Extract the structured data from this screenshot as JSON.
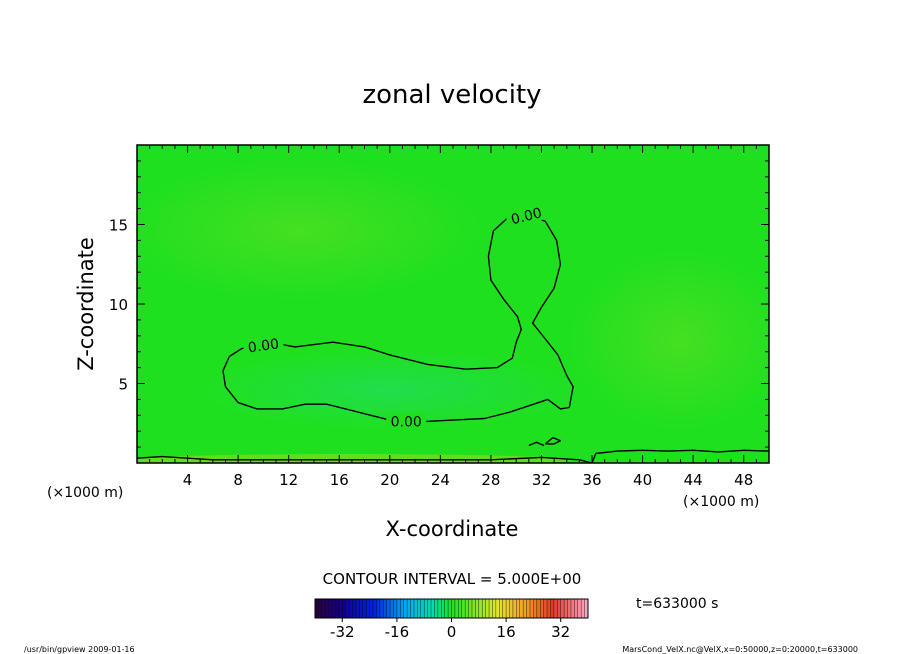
{
  "chart_data": {
    "type": "heatmap",
    "title": "zonal velocity",
    "xlabel": "X-coordinate",
    "ylabel": "Z-coordinate",
    "x_unit": "(×1000 m)",
    "y_unit": "(×1000 m)",
    "xlim": [
      0,
      50
    ],
    "ylim": [
      0,
      20
    ],
    "x_ticks": [
      4,
      8,
      12,
      16,
      20,
      24,
      28,
      32,
      36,
      40,
      44,
      48
    ],
    "y_ticks": [
      5,
      10,
      15
    ],
    "grid": false,
    "contour_interval_text": "CONTOUR INTERVAL = 5.000E+00",
    "contour_label": "0.00",
    "contours": [
      {
        "value": 0.0,
        "points": [
          [
            8.3,
            7.2
          ],
          [
            10.5,
            7.6
          ],
          [
            12.5,
            7.3
          ],
          [
            15.5,
            7.6
          ],
          [
            18,
            7.3
          ],
          [
            20,
            6.8
          ],
          [
            23,
            6.2
          ],
          [
            26,
            5.9
          ],
          [
            28.5,
            6.0
          ],
          [
            29.7,
            6.6
          ],
          [
            30,
            7.6
          ],
          [
            30.4,
            8.4
          ],
          [
            30.1,
            9.2
          ],
          [
            29,
            10.3
          ],
          [
            28,
            11.5
          ],
          [
            27.8,
            13
          ],
          [
            28.2,
            14.6
          ],
          [
            29.3,
            15.4
          ],
          [
            30.8,
            15.7
          ],
          [
            32.3,
            15.2
          ],
          [
            33.2,
            14.0
          ],
          [
            33.5,
            12.5
          ],
          [
            33.0,
            11.0
          ],
          [
            32.0,
            9.8
          ],
          [
            31.3,
            8.8
          ],
          [
            32.3,
            7.8
          ],
          [
            33.3,
            6.8
          ],
          [
            34.0,
            5.5
          ],
          [
            34.5,
            4.8
          ],
          [
            34.2,
            3.5
          ],
          [
            33.5,
            3.4
          ],
          [
            32.5,
            4.0
          ],
          [
            31.0,
            3.6
          ],
          [
            29.5,
            3.2
          ],
          [
            27.5,
            2.8
          ],
          [
            25,
            2.7
          ],
          [
            22.5,
            2.6
          ],
          [
            20.5,
            2.6
          ],
          [
            18.5,
            3.0
          ],
          [
            16.5,
            3.4
          ],
          [
            15,
            3.7
          ],
          [
            13.3,
            3.7
          ],
          [
            11.5,
            3.4
          ],
          [
            9.5,
            3.4
          ],
          [
            8,
            3.8
          ],
          [
            7.0,
            4.8
          ],
          [
            6.8,
            5.8
          ],
          [
            7.3,
            6.7
          ],
          [
            8.3,
            7.2
          ]
        ]
      },
      {
        "value": 0.0,
        "points": [
          [
            31.0,
            1.1
          ],
          [
            31.6,
            1.3
          ],
          [
            32.2,
            1.1
          ]
        ]
      },
      {
        "value": 0.0,
        "points": [
          [
            32.3,
            1.2
          ],
          [
            32.9,
            1.6
          ],
          [
            33.5,
            1.4
          ],
          [
            33.0,
            1.2
          ],
          [
            32.3,
            1.2
          ]
        ]
      },
      {
        "value": 0.0,
        "points": [
          [
            0,
            0.3
          ],
          [
            2,
            0.4
          ],
          [
            4,
            0.3
          ],
          [
            6,
            0.2
          ],
          [
            12,
            0.2
          ],
          [
            20,
            0.2
          ],
          [
            28,
            0.2
          ],
          [
            32,
            0.35
          ],
          [
            35,
            0.2
          ],
          [
            36,
            0.0
          ]
        ]
      },
      {
        "value": 0.0,
        "points": [
          [
            36.0,
            0.0
          ],
          [
            36.3,
            0.6
          ],
          [
            38,
            0.75
          ],
          [
            40,
            0.8
          ],
          [
            42,
            0.75
          ],
          [
            44,
            0.8
          ],
          [
            46,
            0.7
          ],
          [
            48,
            0.8
          ],
          [
            50,
            0.75
          ]
        ]
      }
    ],
    "colorbar": {
      "ticks": [
        -32,
        -16,
        0,
        16,
        32
      ],
      "range": [
        -40,
        40
      ]
    },
    "time_label": "t=633000 s"
  },
  "footer": {
    "left": "/usr/bin/gpview  2009-01-16",
    "right": "MarsCond_VelX.nc@VelX,x=0:50000,z=0:20000,t=633000"
  },
  "colors": {
    "field_base": "#1fe01f",
    "contour": "#000000"
  }
}
